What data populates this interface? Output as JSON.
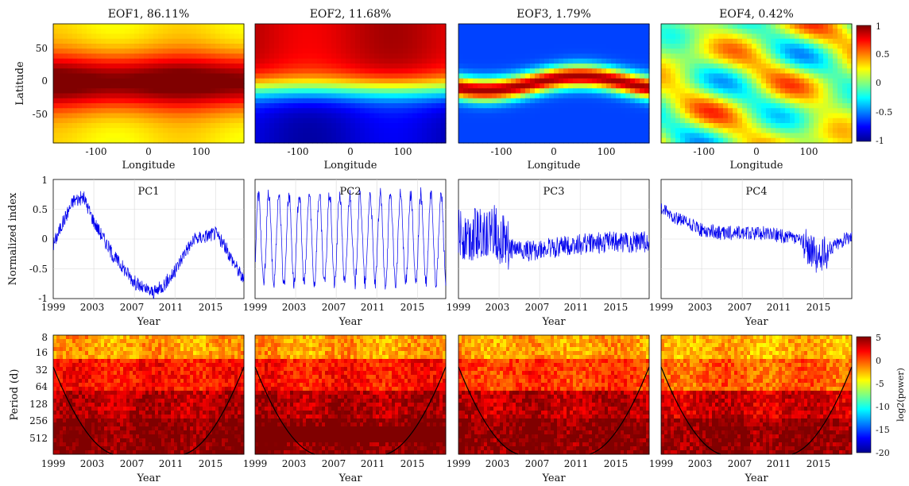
{
  "chart_data": {
    "type": "figure",
    "panels": [
      {
        "id": "eof1",
        "type": "heatmap",
        "title": "EOF1, 86.11%",
        "xlabel": "Longitude",
        "ylabel": "Latitude",
        "xlim": [
          -180,
          180
        ],
        "ylim": [
          -90,
          90
        ],
        "xticks": [
          "-100",
          "0",
          "100"
        ],
        "yticks": [
          "50",
          "0",
          "-50"
        ],
        "pattern": "positive maximum across the tropics (about 0.5 to 0.8), decreasing toward the poles (about 0.3 to 0.4)"
      },
      {
        "id": "eof2",
        "type": "heatmap",
        "title": "EOF2, 11.68%",
        "xlabel": "Longitude",
        "xticks": [
          "-100",
          "0",
          "100"
        ],
        "pattern": "positive in the northern hemisphere (about 0.6 to 0.8), negative in the southern hemisphere (about -0.6 to -0.8)"
      },
      {
        "id": "eof3",
        "type": "heatmap",
        "title": "EOF3, 1.79%",
        "xlabel": "Longitude",
        "xticks": [
          "-100",
          "0",
          "100"
        ],
        "pattern": "positive band along the equator (about 0.6 to 0.9), negative at middle and high latitudes (about -0.4 to -0.7)"
      },
      {
        "id": "eof4",
        "type": "heatmap",
        "title": "EOF4, 0.42%",
        "xlabel": "Longitude",
        "xticks": [
          "-100",
          "0",
          "100"
        ],
        "pattern": "mixed small-scale pattern, mostly between -0.4 and 0.6"
      },
      {
        "id": "pc1",
        "type": "line",
        "label": "PC1",
        "xlabel": "Year",
        "ylabel": "Normalized index",
        "ylim": [
          -1,
          1
        ],
        "yticks": [
          "1",
          "0.5",
          "0",
          "-0.5",
          "-1"
        ],
        "xticks": [
          "1999",
          "2003",
          "2007",
          "2011",
          "2015"
        ],
        "x": [
          1999,
          2000,
          2001,
          2002,
          2003,
          2004,
          2005,
          2006,
          2007,
          2008,
          2009,
          2010,
          2011,
          2012,
          2013,
          2014,
          2015,
          2016,
          2017,
          2017.8
        ],
        "y": [
          -0.1,
          0.3,
          0.65,
          0.7,
          0.3,
          0.0,
          -0.3,
          -0.5,
          -0.72,
          -0.85,
          -0.9,
          -0.75,
          -0.55,
          -0.2,
          0.0,
          0.05,
          0.1,
          -0.15,
          -0.45,
          -0.7
        ]
      },
      {
        "id": "pc2",
        "type": "line",
        "label": "PC2",
        "xlabel": "Year",
        "xticks": [
          "1999",
          "2003",
          "2007",
          "2011",
          "2015"
        ],
        "signal": "annual cycle",
        "amplitude": 0.75,
        "ylim": [
          -1,
          1
        ]
      },
      {
        "id": "pc3",
        "type": "line",
        "label": "PC3",
        "xlabel": "Year",
        "xticks": [
          "1999",
          "2003",
          "2007",
          "2011",
          "2015"
        ],
        "x": [
          1999,
          2001,
          2002.5,
          2004,
          2006,
          2010,
          2014,
          2017.8
        ],
        "y": [
          0.05,
          0.1,
          0.15,
          -0.15,
          -0.2,
          -0.1,
          -0.05,
          -0.05
        ],
        "ylim": [
          -1,
          1
        ]
      },
      {
        "id": "pc4",
        "type": "line",
        "label": "PC4",
        "xlabel": "Year",
        "xticks": [
          "1999",
          "2003",
          "2007",
          "2011",
          "2015"
        ],
        "x": [
          1999,
          2001,
          2003,
          2005,
          2007,
          2009,
          2011,
          2013,
          2014.5,
          2016,
          2017.8
        ],
        "y": [
          0.5,
          0.3,
          0.15,
          0.1,
          0.1,
          0.1,
          0.05,
          -0.05,
          -0.35,
          -0.1,
          0.05
        ],
        "ylim": [
          -1,
          1
        ]
      },
      {
        "id": "ws1",
        "type": "heatmap",
        "xlabel": "Year",
        "ylabel": "Period (d)",
        "xticks": [
          "1999",
          "2003",
          "2007",
          "2011",
          "2015"
        ],
        "yticks": [
          "8",
          "16",
          "32",
          "64",
          "128",
          "256",
          "512"
        ],
        "pattern": "wavelet power spectrum; high power at long periods",
        "power_levels": [
          -2,
          1.5,
          3.5,
          4.8
        ]
      },
      {
        "id": "ws2",
        "type": "heatmap",
        "xlabel": "Year",
        "xticks": [
          "1999",
          "2003",
          "2007",
          "2011",
          "2015"
        ],
        "pattern": "wavelet power spectrum; strongest band near 365 days",
        "power_levels": [
          -2,
          1.5,
          3.8,
          4.8
        ]
      },
      {
        "id": "ws3",
        "type": "heatmap",
        "xlabel": "Year",
        "xticks": [
          "1999",
          "2003",
          "2007",
          "2011",
          "2015"
        ],
        "pattern": "wavelet power spectrum",
        "power_levels": [
          -2,
          0.5,
          3.5,
          4.8
        ]
      },
      {
        "id": "ws4",
        "type": "heatmap",
        "xlabel": "Year",
        "xticks": [
          "1999",
          "2003",
          "2007",
          "2011",
          "2015"
        ],
        "pattern": "wavelet power spectrum",
        "power_levels": [
          -2.5,
          -0.5,
          3.0,
          4.6
        ]
      }
    ],
    "colorbars": [
      {
        "id": "eof-colorbar",
        "ticks": [
          "1",
          "0.5",
          "0",
          "-0.5",
          "-1"
        ],
        "range": [
          -1,
          1
        ]
      },
      {
        "id": "power-colorbar",
        "label": "log2(power)",
        "ticks": [
          "5",
          "0",
          "-5",
          "-10",
          "-15",
          "-20"
        ],
        "range": [
          -20,
          5
        ]
      }
    ]
  }
}
